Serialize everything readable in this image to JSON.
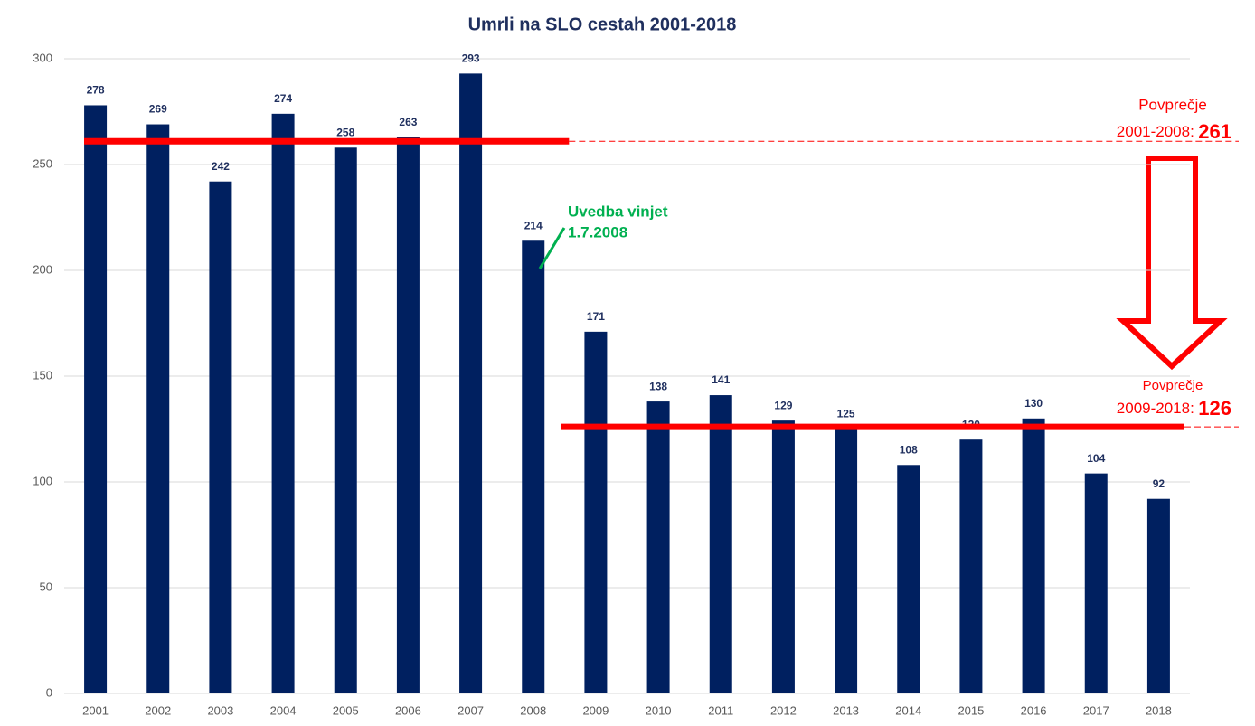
{
  "chart_data": {
    "type": "bar",
    "title": "Umrli na SLO cestah 2001-2018",
    "categories": [
      "2001",
      "2002",
      "2003",
      "2004",
      "2005",
      "2006",
      "2007",
      "2008",
      "2009",
      "2010",
      "2011",
      "2012",
      "2013",
      "2014",
      "2015",
      "2016",
      "2017",
      "2018"
    ],
    "values": [
      278,
      269,
      242,
      274,
      258,
      263,
      293,
      214,
      171,
      138,
      141,
      129,
      125,
      108,
      120,
      130,
      104,
      92
    ],
    "color": "#002060",
    "ylim": [
      0,
      300
    ],
    "yticks": [
      0,
      50,
      100,
      150,
      200,
      250,
      300
    ],
    "grid": true,
    "averages": [
      {
        "label": "Povprečje",
        "period": "2001-2008:",
        "value": 261,
        "color": "#ff0000"
      },
      {
        "label": "Povprečje",
        "period": "2009-2018:",
        "value": 126,
        "color": "#ff0000"
      }
    ],
    "annotation": {
      "lines": [
        "Uvedba vinjet",
        "1.7.2008"
      ],
      "color": "#00b050"
    }
  }
}
